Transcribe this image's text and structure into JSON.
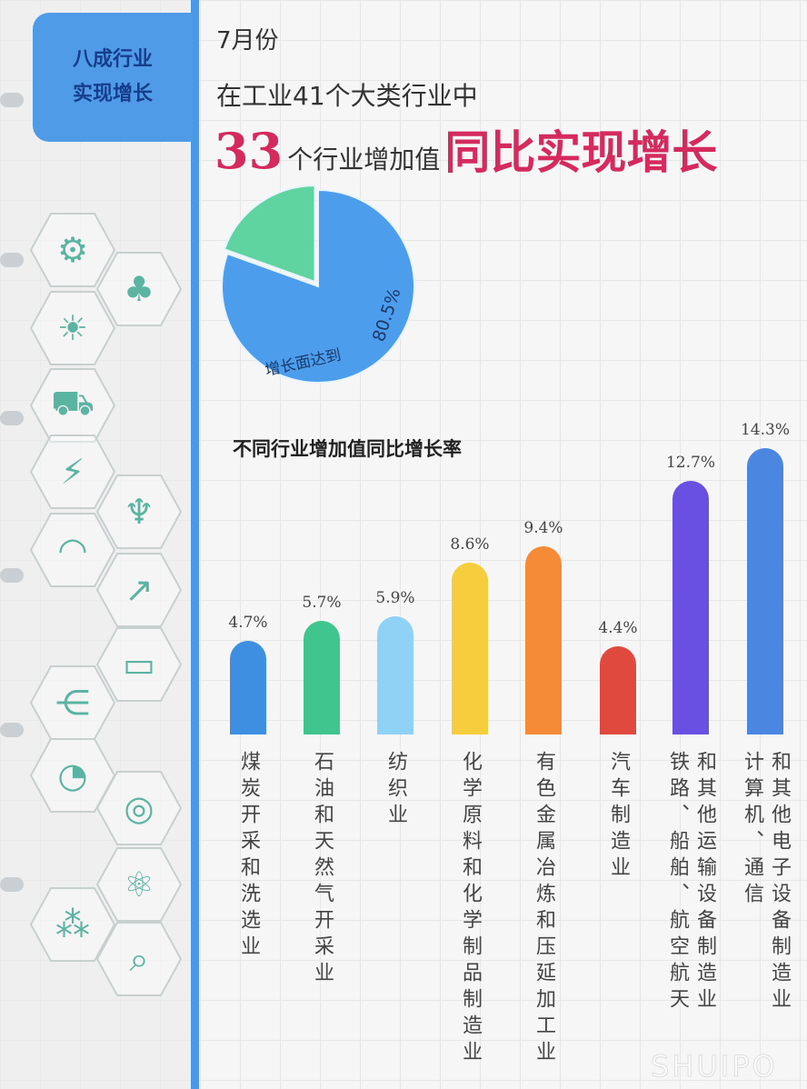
{
  "sidebar": {
    "tab_line1": "八成行业",
    "tab_line2": "实现增长",
    "icons": [
      "gears-icon",
      "eco-plug-icon",
      "solar-panel-icon",
      "electric-car-icon",
      "energy-icon",
      "antenna-icon",
      "wifi-icon",
      "growth-chart-icon",
      "browser-icon",
      "share-icon",
      "percent-pie-icon",
      "target-icon",
      "atom-icon",
      "network-icon",
      "laptop-search-icon"
    ]
  },
  "header": {
    "month": "7月份",
    "line2": "在工业41个大类行业中",
    "count": "33",
    "line3_mid": "个行业增加值",
    "line3_highlight": "同比实现增长"
  },
  "pie": {
    "label": "增长面达到",
    "value_label": "80.5%",
    "values": [
      80.5,
      19.5
    ],
    "colors": [
      "#4d9ded",
      "#5fd3a0"
    ]
  },
  "chart_data": {
    "type": "bar",
    "title": "不同行业增加值同比增长率",
    "categories": [
      [
        "煤炭开采和洗选业"
      ],
      [
        "石油和天然气开采业"
      ],
      [
        "纺织业"
      ],
      [
        "化学原料和化学制品制造业"
      ],
      [
        "有色金属冶炼和压延加工业"
      ],
      [
        "汽车制造业"
      ],
      [
        "铁路、船舶、航空航天",
        "和其他运输设备制造业"
      ],
      [
        "计算机、通信",
        "和其他电子设备制造业"
      ]
    ],
    "values": [
      4.7,
      5.7,
      5.9,
      8.6,
      9.4,
      4.4,
      12.7,
      14.3
    ],
    "value_labels": [
      "4.7%",
      "5.7%",
      "5.9%",
      "8.6%",
      "9.4%",
      "4.4%",
      "12.7%",
      "14.3%"
    ],
    "colors": [
      "#3e8fe2",
      "#3fc58d",
      "#90d2f6",
      "#f6cd3c",
      "#f68b37",
      "#e0493e",
      "#6a50e2",
      "#4b86e0"
    ],
    "unit": "%",
    "grid": false
  },
  "watermark": "SHUIPO"
}
